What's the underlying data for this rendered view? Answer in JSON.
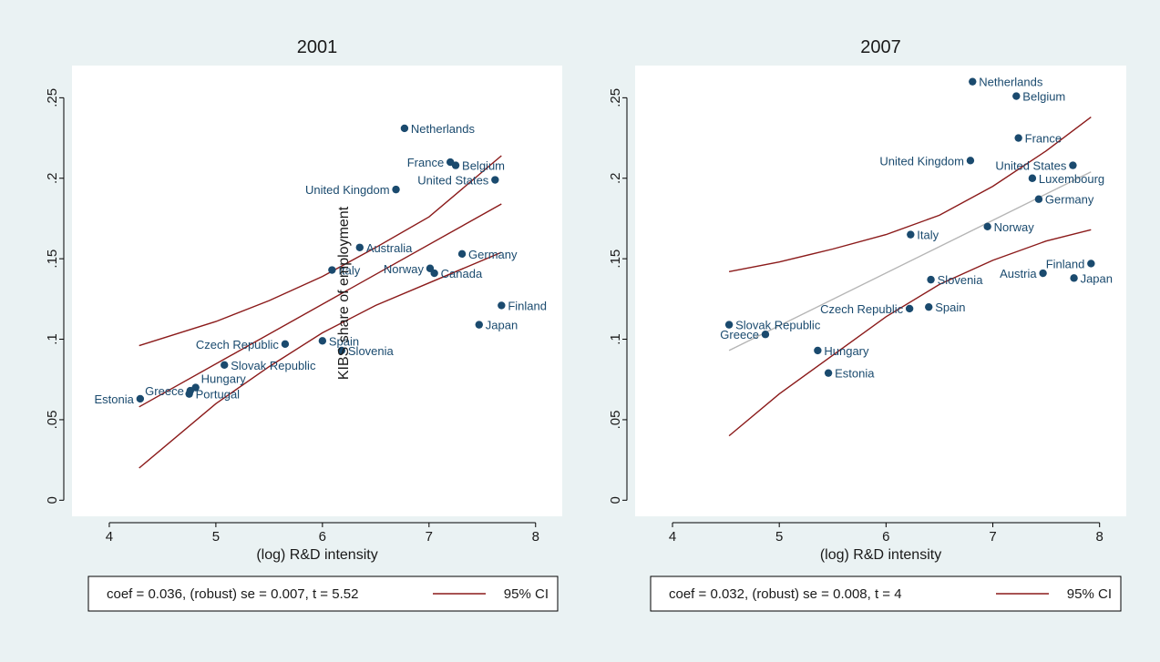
{
  "colors": {
    "background": "#eaf2f3",
    "plot_area": "#ffffff",
    "marker": "#1a4a6e",
    "label": "#1a4a6e",
    "ci_line": "#8b1a1a",
    "fit_line_2007": "#b5b5b5"
  },
  "overlay_label": "KIBS share of employment",
  "chart_data": [
    {
      "type": "scatter",
      "title": "2001",
      "xlabel": "(log) R&D intensity",
      "ylabel": "",
      "xlim": [
        3.65,
        8.25
      ],
      "ylim": [
        -0.01,
        0.27
      ],
      "xticks": [
        4,
        5,
        6,
        7,
        8
      ],
      "yticks": [
        0,
        0.05,
        0.1,
        0.15,
        0.2,
        0.25
      ],
      "ytick_labels": [
        "0",
        ".05",
        ".1",
        ".15",
        ".2",
        ".25"
      ],
      "points": [
        {
          "label": "Netherlands",
          "x": 6.77,
          "y": 0.231,
          "pos": "right"
        },
        {
          "label": "France",
          "x": 7.2,
          "y": 0.21,
          "pos": "left"
        },
        {
          "label": "Belgium",
          "x": 7.25,
          "y": 0.208,
          "pos": "right"
        },
        {
          "label": "United States",
          "x": 7.62,
          "y": 0.199,
          "pos": "left"
        },
        {
          "label": "United Kingdom",
          "x": 6.69,
          "y": 0.193,
          "pos": "left"
        },
        {
          "label": "Australia",
          "x": 6.35,
          "y": 0.157,
          "pos": "right"
        },
        {
          "label": "Germany",
          "x": 7.31,
          "y": 0.153,
          "pos": "right"
        },
        {
          "label": "Norway",
          "x": 7.01,
          "y": 0.144,
          "pos": "left"
        },
        {
          "label": "Canada",
          "x": 7.05,
          "y": 0.141,
          "pos": "right"
        },
        {
          "label": "Italy",
          "x": 6.09,
          "y": 0.143,
          "pos": "right"
        },
        {
          "label": "Finland",
          "x": 7.68,
          "y": 0.121,
          "pos": "right"
        },
        {
          "label": "Japan",
          "x": 7.47,
          "y": 0.109,
          "pos": "right"
        },
        {
          "label": "Czech Republic",
          "x": 5.65,
          "y": 0.097,
          "pos": "left"
        },
        {
          "label": "Spain",
          "x": 6.0,
          "y": 0.099,
          "pos": "right"
        },
        {
          "label": "Slovenia",
          "x": 6.18,
          "y": 0.093,
          "pos": "right"
        },
        {
          "label": "Slovak Republic",
          "x": 5.08,
          "y": 0.084,
          "pos": "right"
        },
        {
          "label": "Hungary",
          "x": 4.81,
          "y": 0.07,
          "pos": "above-right"
        },
        {
          "label": "Greece",
          "x": 4.76,
          "y": 0.068,
          "pos": "left"
        },
        {
          "label": "Portugal",
          "x": 4.75,
          "y": 0.066,
          "pos": "right"
        },
        {
          "label": "Estonia",
          "x": 4.29,
          "y": 0.063,
          "pos": "left"
        }
      ],
      "fit": {
        "x": [
          4.28,
          7.68
        ],
        "y": [
          0.058,
          0.184
        ]
      },
      "ci_upper": {
        "x": [
          4.28,
          5.0,
          5.5,
          6.0,
          6.5,
          7.0,
          7.68
        ],
        "y": [
          0.096,
          0.111,
          0.124,
          0.139,
          0.157,
          0.176,
          0.214
        ]
      },
      "ci_lower": {
        "x": [
          4.28,
          5.0,
          5.5,
          6.0,
          6.5,
          7.0,
          7.68
        ],
        "y": [
          0.02,
          0.06,
          0.083,
          0.104,
          0.121,
          0.135,
          0.154
        ]
      },
      "legend": {
        "stat": "coef = 0.036, (robust) se = 0.007, t = 5.52",
        "ci_label": "95% CI"
      }
    },
    {
      "type": "scatter",
      "title": "2007",
      "xlabel": "(log) R&D intensity",
      "ylabel": "",
      "xlim": [
        3.65,
        8.25
      ],
      "ylim": [
        -0.01,
        0.27
      ],
      "xticks": [
        4,
        5,
        6,
        7,
        8
      ],
      "yticks": [
        0,
        0.05,
        0.1,
        0.15,
        0.2,
        0.25
      ],
      "ytick_labels": [
        "0",
        ".05",
        ".1",
        ".15",
        ".2",
        ".25"
      ],
      "points": [
        {
          "label": "Netherlands",
          "x": 6.81,
          "y": 0.26,
          "pos": "right"
        },
        {
          "label": "Belgium",
          "x": 7.22,
          "y": 0.251,
          "pos": "right"
        },
        {
          "label": "France",
          "x": 7.24,
          "y": 0.225,
          "pos": "right"
        },
        {
          "label": "United Kingdom",
          "x": 6.79,
          "y": 0.211,
          "pos": "left"
        },
        {
          "label": "United States",
          "x": 7.75,
          "y": 0.208,
          "pos": "left"
        },
        {
          "label": "Luxembourg",
          "x": 7.37,
          "y": 0.2,
          "pos": "right"
        },
        {
          "label": "Germany",
          "x": 7.43,
          "y": 0.187,
          "pos": "right"
        },
        {
          "label": "Norway",
          "x": 6.95,
          "y": 0.17,
          "pos": "right"
        },
        {
          "label": "Italy",
          "x": 6.23,
          "y": 0.165,
          "pos": "right"
        },
        {
          "label": "Finland",
          "x": 7.92,
          "y": 0.147,
          "pos": "left"
        },
        {
          "label": "Austria",
          "x": 7.47,
          "y": 0.141,
          "pos": "left"
        },
        {
          "label": "Japan",
          "x": 7.76,
          "y": 0.138,
          "pos": "right"
        },
        {
          "label": "Slovenia",
          "x": 6.42,
          "y": 0.137,
          "pos": "right"
        },
        {
          "label": "Czech Republic",
          "x": 6.22,
          "y": 0.119,
          "pos": "left"
        },
        {
          "label": "Spain",
          "x": 6.4,
          "y": 0.12,
          "pos": "right"
        },
        {
          "label": "Slovak Republic",
          "x": 4.53,
          "y": 0.109,
          "pos": "right"
        },
        {
          "label": "Greece",
          "x": 4.87,
          "y": 0.103,
          "pos": "left"
        },
        {
          "label": "Hungary",
          "x": 5.36,
          "y": 0.093,
          "pos": "right"
        },
        {
          "label": "Estonia",
          "x": 5.46,
          "y": 0.079,
          "pos": "right"
        }
      ],
      "fit": {
        "x": [
          4.53,
          7.92
        ],
        "y": [
          0.093,
          0.204
        ]
      },
      "ci_upper": {
        "x": [
          4.53,
          5.0,
          5.5,
          6.0,
          6.5,
          7.0,
          7.5,
          7.92
        ],
        "y": [
          0.142,
          0.148,
          0.156,
          0.165,
          0.177,
          0.195,
          0.217,
          0.238
        ]
      },
      "ci_lower": {
        "x": [
          4.53,
          5.0,
          5.5,
          6.0,
          6.5,
          7.0,
          7.5,
          7.92
        ],
        "y": [
          0.04,
          0.066,
          0.09,
          0.114,
          0.134,
          0.149,
          0.161,
          0.168
        ]
      },
      "legend": {
        "stat": "coef = 0.032, (robust) se = 0.008, t = 4",
        "ci_label": "95% CI"
      }
    }
  ]
}
